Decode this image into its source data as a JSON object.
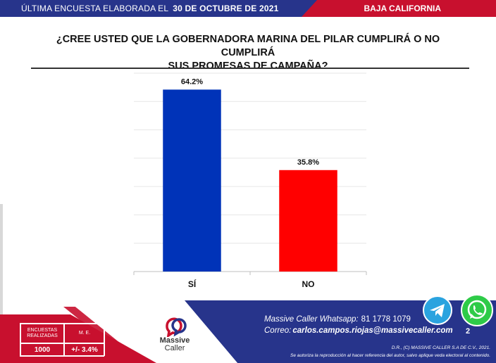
{
  "header": {
    "survey_label": "ÚLTIMA ENCUESTA ELABORADA EL",
    "survey_date": "30 DE OCTUBRE DE 2021",
    "region": "BAJA CALIFORNIA"
  },
  "question": {
    "line1": "¿CREE USTED QUE LA GOBERNADORA MARINA DEL PILAR CUMPLIRÁ O NO CUMPLIRÁ",
    "line2": "SUS PROMESAS DE CAMPAÑA?"
  },
  "chart_data": {
    "type": "bar",
    "categories": [
      "SÍ",
      "NO"
    ],
    "values": [
      64.2,
      35.8
    ],
    "value_labels": [
      "64.2%",
      "35.8%"
    ],
    "colors": [
      "#0033b8",
      "#ff0000"
    ],
    "ylim": [
      0,
      70
    ],
    "grid": true,
    "legend": "none"
  },
  "stats": {
    "encuestas_label": "ENCUESTAS REALIZADAS",
    "me_label": "M. E.",
    "encuestas_value": "1000",
    "me_value": "+/- 3.4%"
  },
  "logo": {
    "line1": "Massive",
    "line2": "Caller"
  },
  "contact": {
    "whatsapp_label": "Massive Caller Whatsapp:",
    "whatsapp_number": "81 1778 1079",
    "email_label": "Correo:",
    "email": "carlos.campos.riojas@massivecaller.com"
  },
  "page_number": "2",
  "legal": {
    "line1": "D.R., (C) MASSIVE CALLER S.A DE C.V., 2021.",
    "line2": "Se autoriza la reproducción al hacer referencia del autor, salvo aplique veda electoral al contenido."
  },
  "colors": {
    "brand_blue": "#27348b",
    "brand_red": "#c8102e",
    "telegram": "#2aa3df",
    "whatsapp": "#2ecb48"
  },
  "icons": [
    "telegram-icon",
    "whatsapp-icon",
    "massive-caller-logo"
  ]
}
